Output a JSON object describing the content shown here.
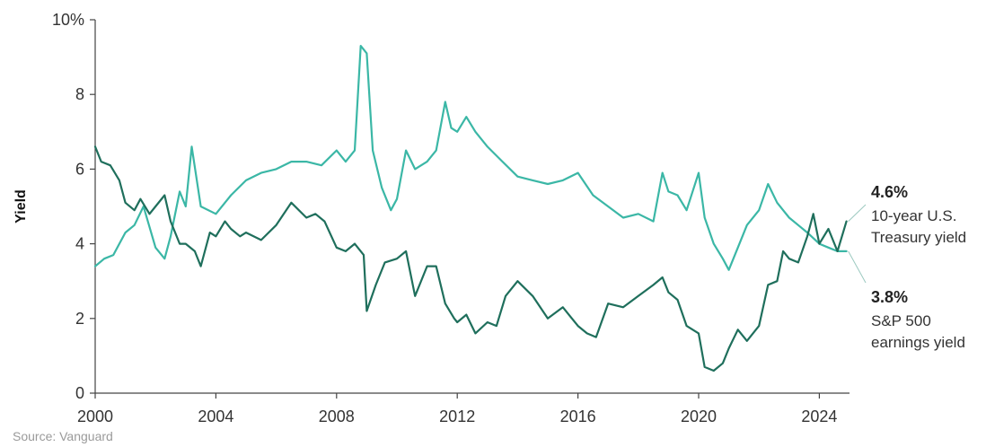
{
  "chart_data": {
    "type": "line",
    "title": "",
    "ylabel": "Yield",
    "xlabel": "",
    "xlim": [
      2000,
      2025
    ],
    "ylim": [
      0,
      10
    ],
    "x_ticks": [
      2000,
      2004,
      2008,
      2012,
      2016,
      2020,
      2024
    ],
    "x_tick_labels": [
      "2000",
      "2004",
      "2008",
      "2012",
      "2016",
      "2020",
      "2024"
    ],
    "y_ticks": [
      0,
      2,
      4,
      6,
      8,
      10
    ],
    "y_tick_labels": [
      "0",
      "2",
      "4",
      "6",
      "8",
      "10%"
    ],
    "grid": false,
    "colors": {
      "treasury": "#1f6f5c",
      "earnings": "#3bb7a6",
      "axis": "#444444"
    },
    "series": [
      {
        "key": "treasury",
        "x": [
          2000.0,
          2000.2,
          2000.5,
          2000.8,
          2001.0,
          2001.3,
          2001.5,
          2001.8,
          2002.0,
          2002.3,
          2002.5,
          2002.8,
          2003.0,
          2003.3,
          2003.5,
          2003.8,
          2004.0,
          2004.3,
          2004.5,
          2004.8,
          2005.0,
          2005.5,
          2006.0,
          2006.5,
          2007.0,
          2007.3,
          2007.6,
          2008.0,
          2008.3,
          2008.6,
          2008.9,
          2009.0,
          2009.3,
          2009.6,
          2010.0,
          2010.3,
          2010.6,
          2011.0,
          2011.3,
          2011.6,
          2011.9,
          2012.0,
          2012.3,
          2012.6,
          2013.0,
          2013.3,
          2013.6,
          2014.0,
          2014.5,
          2015.0,
          2015.5,
          2016.0,
          2016.3,
          2016.6,
          2017.0,
          2017.5,
          2018.0,
          2018.5,
          2018.8,
          2019.0,
          2019.3,
          2019.6,
          2020.0,
          2020.2,
          2020.5,
          2020.8,
          2021.0,
          2021.3,
          2021.6,
          2022.0,
          2022.3,
          2022.6,
          2022.8,
          2023.0,
          2023.3,
          2023.6,
          2023.8,
          2024.0,
          2024.3,
          2024.6,
          2024.9
        ],
        "values": [
          6.6,
          6.2,
          6.1,
          5.7,
          5.1,
          4.9,
          5.2,
          4.8,
          5.0,
          5.3,
          4.6,
          4.0,
          4.0,
          3.8,
          3.4,
          4.3,
          4.2,
          4.6,
          4.4,
          4.2,
          4.3,
          4.1,
          4.5,
          5.1,
          4.7,
          4.8,
          4.6,
          3.9,
          3.8,
          4.0,
          3.7,
          2.2,
          2.9,
          3.5,
          3.6,
          3.8,
          2.6,
          3.4,
          3.4,
          2.4,
          2.0,
          1.9,
          2.1,
          1.6,
          1.9,
          1.8,
          2.6,
          3.0,
          2.6,
          2.0,
          2.3,
          1.8,
          1.6,
          1.5,
          2.4,
          2.3,
          2.6,
          2.9,
          3.1,
          2.7,
          2.5,
          1.8,
          1.6,
          0.7,
          0.6,
          0.8,
          1.2,
          1.7,
          1.4,
          1.8,
          2.9,
          3.0,
          3.8,
          3.6,
          3.5,
          4.2,
          4.8,
          4.0,
          4.4,
          3.8,
          4.6
        ]
      },
      {
        "key": "earnings",
        "x": [
          2000.0,
          2000.3,
          2000.6,
          2001.0,
          2001.3,
          2001.6,
          2002.0,
          2002.3,
          2002.5,
          2002.8,
          2003.0,
          2003.2,
          2003.5,
          2004.0,
          2004.5,
          2005.0,
          2005.5,
          2006.0,
          2006.5,
          2007.0,
          2007.5,
          2008.0,
          2008.3,
          2008.6,
          2008.8,
          2009.0,
          2009.2,
          2009.5,
          2009.8,
          2010.0,
          2010.3,
          2010.6,
          2011.0,
          2011.3,
          2011.6,
          2011.8,
          2012.0,
          2012.3,
          2012.6,
          2013.0,
          2013.5,
          2014.0,
          2014.5,
          2015.0,
          2015.5,
          2016.0,
          2016.5,
          2017.0,
          2017.5,
          2018.0,
          2018.5,
          2018.8,
          2019.0,
          2019.3,
          2019.6,
          2020.0,
          2020.2,
          2020.5,
          2020.8,
          2021.0,
          2021.3,
          2021.6,
          2022.0,
          2022.3,
          2022.6,
          2022.8,
          2023.0,
          2023.3,
          2023.6,
          2024.0,
          2024.3,
          2024.6,
          2024.9
        ],
        "values": [
          3.4,
          3.6,
          3.7,
          4.3,
          4.5,
          5.0,
          3.9,
          3.6,
          4.2,
          5.4,
          5.0,
          6.6,
          5.0,
          4.8,
          5.3,
          5.7,
          5.9,
          6.0,
          6.2,
          6.2,
          6.1,
          6.5,
          6.2,
          6.5,
          9.3,
          9.1,
          6.5,
          5.5,
          4.9,
          5.2,
          6.5,
          6.0,
          6.2,
          6.5,
          7.8,
          7.1,
          7.0,
          7.4,
          7.0,
          6.6,
          6.2,
          5.8,
          5.7,
          5.6,
          5.7,
          5.9,
          5.3,
          5.0,
          4.7,
          4.8,
          4.6,
          5.9,
          5.4,
          5.3,
          4.9,
          5.9,
          4.7,
          4.0,
          3.6,
          3.3,
          3.9,
          4.5,
          4.9,
          5.6,
          5.1,
          4.9,
          4.7,
          4.5,
          4.3,
          4.0,
          3.9,
          3.8,
          3.8
        ]
      }
    ],
    "annotations": [
      {
        "key": "treasury",
        "value": "4.6%",
        "lines": [
          "10-year U.S.",
          "Treasury yield"
        ]
      },
      {
        "key": "earnings",
        "value": "3.8%",
        "lines": [
          "S&P 500",
          "earnings yield"
        ]
      }
    ]
  },
  "source": "Source: Vanguard"
}
